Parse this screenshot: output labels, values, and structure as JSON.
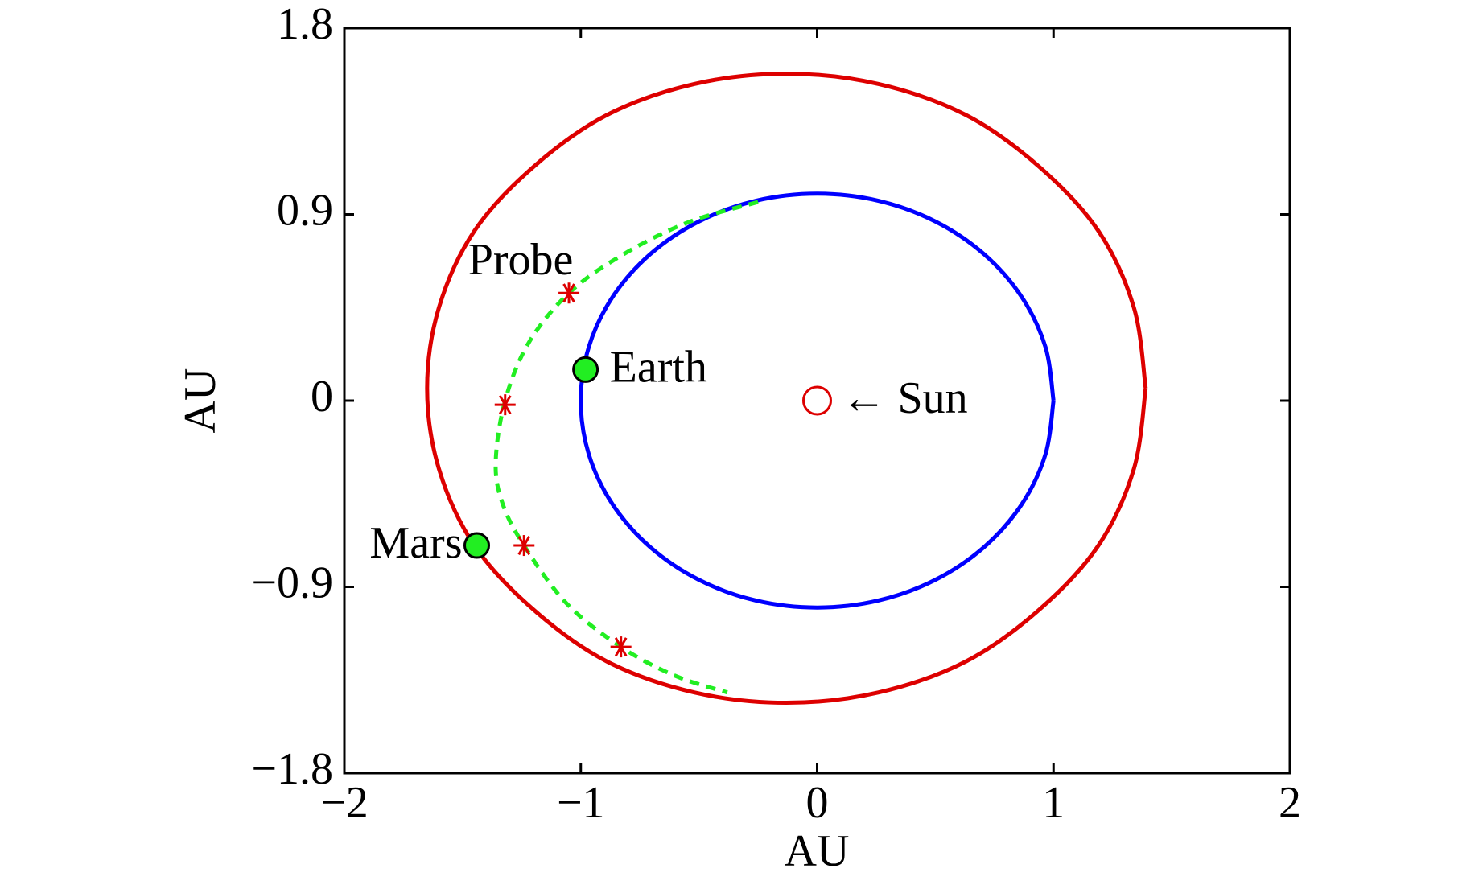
{
  "chart_data": {
    "type": "line",
    "xlabel": "AU",
    "ylabel": "AU",
    "xlim": [
      -2,
      2
    ],
    "ylim": [
      -1.8,
      1.8
    ],
    "xticks": [
      {
        "value": -2,
        "label": "−2"
      },
      {
        "value": -1,
        "label": "−1"
      },
      0,
      1,
      2
    ],
    "yticks": [
      {
        "value": -1.8,
        "label": "−1.8"
      },
      {
        "value": -0.9,
        "label": "−0.9"
      },
      0,
      0.9,
      1.8
    ],
    "series": [
      {
        "color": "#0000ff",
        "linestyle": "solid",
        "x": [
          1,
          0.966,
          0.866,
          0.707,
          0.5,
          0.259,
          0,
          -0.259,
          -0.5,
          -0.707,
          -0.866,
          -0.966,
          -1,
          -0.966,
          -0.866,
          -0.707,
          -0.5,
          -0.259,
          0,
          0.259,
          0.5,
          0.707,
          0.866,
          0.966,
          1
        ],
        "y": [
          0,
          0.259,
          0.5,
          0.707,
          0.866,
          0.966,
          1,
          0.966,
          0.866,
          0.707,
          0.5,
          0.259,
          0,
          -0.259,
          -0.5,
          -0.707,
          -0.866,
          -0.966,
          -1,
          -0.966,
          -0.866,
          -0.707,
          -0.5,
          -0.259,
          0
        ]
      },
      {
        "color": "#dd0000",
        "linestyle": "solid",
        "x": [
          1.39,
          1.34,
          1.19,
          0.94,
          0.63,
          0.26,
          -0.13,
          -0.52,
          -0.89,
          -1.2,
          -1.45,
          -1.6,
          -1.65,
          -1.6,
          -1.45,
          -1.2,
          -0.89,
          -0.52,
          -0.13,
          0.26,
          0.63,
          0.94,
          1.19,
          1.34,
          1.39
        ],
        "y": [
          0.06,
          0.45,
          0.82,
          1.13,
          1.38,
          1.53,
          1.58,
          1.53,
          1.38,
          1.13,
          0.82,
          0.45,
          0.06,
          -0.33,
          -0.7,
          -1.01,
          -1.26,
          -1.41,
          -1.46,
          -1.41,
          -1.26,
          -1.01,
          -0.7,
          -0.33,
          0.06
        ]
      },
      {
        "color": "#22ee22",
        "linestyle": "dashed",
        "x": [
          -0.25,
          -0.55,
          -0.83,
          -1.05,
          -1.22,
          -1.32,
          -1.36,
          -1.33,
          -1.24,
          -1.06,
          -0.83,
          -0.6,
          -0.38
        ],
        "y": [
          0.96,
          0.86,
          0.7,
          0.52,
          0.28,
          0,
          -0.3,
          -0.5,
          -0.7,
          -0.98,
          -1.19,
          -1.33,
          -1.41
        ]
      },
      {
        "name": "Probe",
        "label_side": "above-left",
        "marker": "asterisk",
        "color": "#dd0000",
        "x": [
          -1.05,
          -1.32,
          -1.24,
          -0.83
        ],
        "y": [
          0.52,
          -0.02,
          -0.7,
          -1.19
        ]
      },
      {
        "name": "Earth",
        "label_side": "right",
        "marker": "circle",
        "color": "#22ee22",
        "x": [
          -0.98
        ],
        "y": [
          0.15
        ]
      },
      {
        "name": "Mars",
        "label_side": "left",
        "marker": "circle",
        "color": "#22ee22",
        "x": [
          -1.44
        ],
        "y": [
          -0.7
        ]
      },
      {
        "name": "← Sun",
        "label_side": "right",
        "marker": "open-circle",
        "color": "#dd0000",
        "x": [
          0
        ],
        "y": [
          0
        ]
      }
    ]
  }
}
